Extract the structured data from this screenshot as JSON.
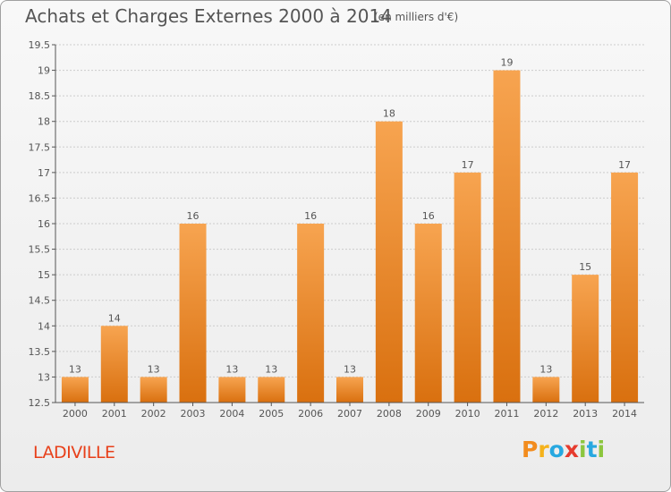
{
  "title": "Achats et Charges Externes 2000 à 2014",
  "subtitle": "(en milliers d'€)",
  "commune": "LADIVILLE",
  "logo": {
    "text": "Proxiti",
    "letters": [
      "P",
      "r",
      "o",
      "x",
      "i",
      "t",
      "i"
    ]
  },
  "colors": {
    "bar_light": "#f7a450",
    "bar_dark": "#d9700f",
    "axis": "#555555",
    "grid": "#cccccc",
    "commune": "#e8401a"
  },
  "chart_data": {
    "type": "bar",
    "categories": [
      "2000",
      "2001",
      "2002",
      "2003",
      "2004",
      "2005",
      "2006",
      "2007",
      "2008",
      "2009",
      "2010",
      "2011",
      "2012",
      "2013",
      "2014"
    ],
    "values": [
      13,
      14,
      13,
      16,
      13,
      13,
      16,
      13,
      18,
      16,
      17,
      19,
      13,
      15,
      17
    ],
    "ylim": [
      12.5,
      19.5
    ],
    "yticks": [
      12.5,
      13,
      13.5,
      14,
      14.5,
      15,
      15.5,
      16,
      16.5,
      17,
      17.5,
      18,
      18.5,
      19,
      19.5
    ],
    "ytick_labels": [
      "12.5",
      "13",
      "13.5",
      "14",
      "14.5",
      "15",
      "15.5",
      "16",
      "16.5",
      "17",
      "17.5",
      "18",
      "18.5",
      "19",
      "19.5"
    ],
    "grid": true,
    "data_labels": true
  }
}
